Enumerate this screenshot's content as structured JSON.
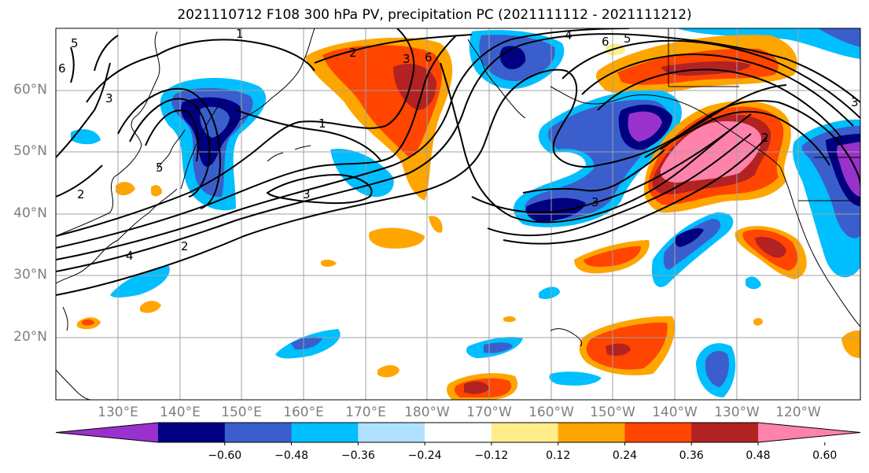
{
  "title": "2021110712 F108 300 hPa PV, precipitation PC (2021111112 - 2021111212)",
  "lat_labels": [
    "60°N",
    "50°N",
    "40°N",
    "30°N",
    "20°N"
  ],
  "lon_labels": [
    "130°E",
    "140°E",
    "150°E",
    "160°E",
    "170°E",
    "180°W",
    "170°W",
    "160°W",
    "150°W",
    "140°W",
    "130°W",
    "120°W"
  ],
  "contour_labels": [
    "5",
    "4",
    "3",
    "2",
    "1",
    "1",
    "2",
    "3",
    "6",
    "5",
    "6",
    "3",
    "2",
    "3",
    "6",
    "5",
    "4",
    "3",
    "2"
  ],
  "colorbar": {
    "ticks": [
      "−0.60",
      "−0.48",
      "−0.36",
      "−0.24",
      "−0.12",
      "0.12",
      "0.24",
      "0.36",
      "0.48",
      "0.60"
    ],
    "colors": [
      "#9932cc",
      "#000080",
      "#3a5fcd",
      "#00bfff",
      "#b0e2ff",
      "#ffffff",
      "#ffec8b",
      "#ffa500",
      "#ff4500",
      "#b22222",
      "#ff82ab"
    ]
  },
  "colors": {
    "grid": "#a0a0a0",
    "coast": "#000000",
    "contour": "#000000",
    "axis_label": "#7f7f7f"
  }
}
